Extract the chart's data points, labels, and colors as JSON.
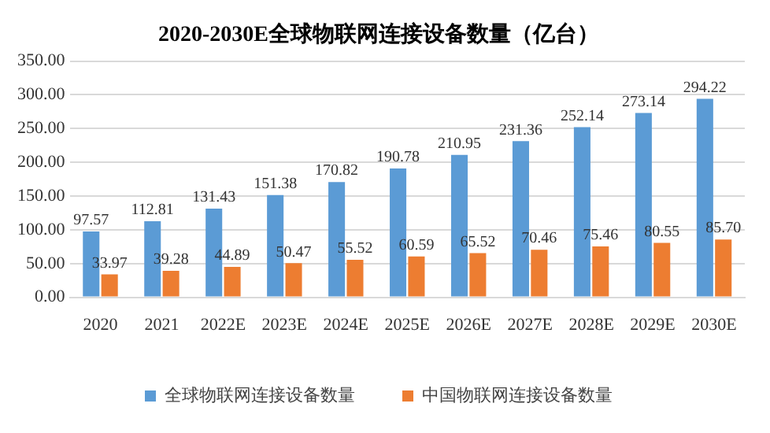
{
  "chart_data": {
    "type": "bar",
    "title": "2020-2030E全球物联网连接设备数量（亿台）",
    "categories": [
      "2020",
      "2021",
      "2022E",
      "2023E",
      "2024E",
      "2025E",
      "2026E",
      "2027E",
      "2028E",
      "2029E",
      "2030E"
    ],
    "series": [
      {
        "name": "全球物联网连接设备数量",
        "color": "#5b9bd5",
        "values": [
          97.57,
          112.81,
          131.43,
          151.38,
          170.82,
          190.78,
          210.95,
          231.36,
          252.14,
          273.14,
          294.22
        ],
        "value_labels": [
          "97.57",
          "112.81",
          "131.43",
          "151.38",
          "170.82",
          "190.78",
          "210.95",
          "231.36",
          "252.14",
          "273.14",
          "294.22"
        ]
      },
      {
        "name": "中国物联网连接设备数量",
        "color": "#ed7d31",
        "values": [
          33.97,
          39.28,
          44.89,
          50.47,
          55.52,
          60.59,
          65.52,
          70.46,
          75.46,
          80.55,
          85.7
        ],
        "value_labels": [
          "33.97",
          "39.28",
          "44.89",
          "50.47",
          "55.52",
          "60.59",
          "65.52",
          "70.46",
          "75.46",
          "80.55",
          "85.70"
        ]
      }
    ],
    "ylim": [
      0,
      350
    ],
    "yticks": [
      {
        "value": 0,
        "label": "0.00"
      },
      {
        "value": 50,
        "label": "50.00"
      },
      {
        "value": 100,
        "label": "100.00"
      },
      {
        "value": 150,
        "label": "150.00"
      },
      {
        "value": 200,
        "label": "200.00"
      },
      {
        "value": 250,
        "label": "250.00"
      },
      {
        "value": 300,
        "label": "300.00"
      },
      {
        "value": 350,
        "label": "350.00"
      }
    ],
    "grid": "y",
    "legend": "bottom"
  }
}
